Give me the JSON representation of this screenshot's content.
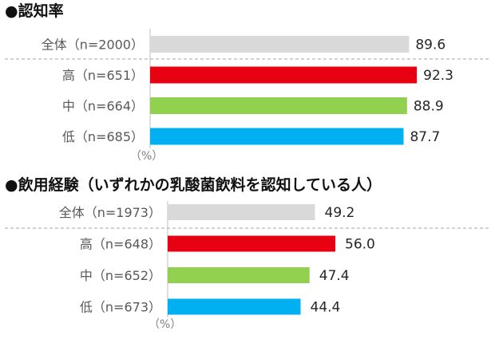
{
  "chart_data": [
    {
      "type": "bar",
      "orientation": "horizontal",
      "title": "●認知率",
      "categories": [
        "全体（n=2000）",
        "高（n=651）",
        "中（n=664）",
        "低（n=685）"
      ],
      "values": [
        89.6,
        92.3,
        88.9,
        87.7
      ],
      "value_labels": [
        "89.6",
        "92.3",
        "88.9",
        "87.7"
      ],
      "unit": "（%）",
      "xlim": [
        0,
        100
      ],
      "colors": [
        "#d9d9d9",
        "#e60012",
        "#92d050",
        "#00b0f0"
      ],
      "grid": false
    },
    {
      "type": "bar",
      "orientation": "horizontal",
      "title": "●飲用経験（いずれかの乳酸菌飲料を認知している人）",
      "categories": [
        "全体（n=1973）",
        "高（n=648）",
        "中（n=652）",
        "低（n=673）"
      ],
      "values": [
        49.2,
        56.0,
        47.4,
        44.4
      ],
      "value_labels": [
        "49.2",
        "56.0",
        "47.4",
        "44.4"
      ],
      "unit": "（%）",
      "xlim": [
        0,
        100
      ],
      "colors": [
        "#d9d9d9",
        "#e60012",
        "#92d050",
        "#00b0f0"
      ],
      "grid": false
    }
  ]
}
